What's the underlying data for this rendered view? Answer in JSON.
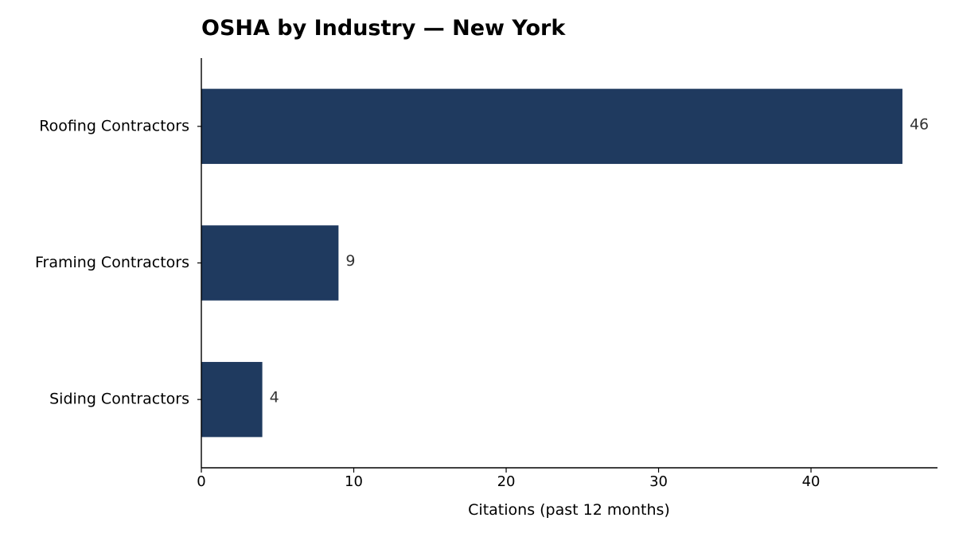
{
  "chart_data": {
    "type": "bar",
    "orientation": "horizontal",
    "title": "OSHA by Industry — New York",
    "xlabel": "Citations (past 12 months)",
    "ylabel": "",
    "categories": [
      "Roofing Contractors",
      "Framing Contractors",
      "Siding Contractors"
    ],
    "values": [
      46,
      9,
      4
    ],
    "value_labels": [
      "46",
      "9",
      "4"
    ],
    "xlim": [
      0,
      48.3
    ],
    "xticks": [
      0,
      10,
      20,
      30,
      40
    ],
    "xtick_labels": [
      "0",
      "10",
      "20",
      "30",
      "40"
    ],
    "grid": false,
    "legend": "none",
    "bar_color": "#1f3a5f",
    "text_color": "#000000",
    "value_label_color": "#333333"
  }
}
